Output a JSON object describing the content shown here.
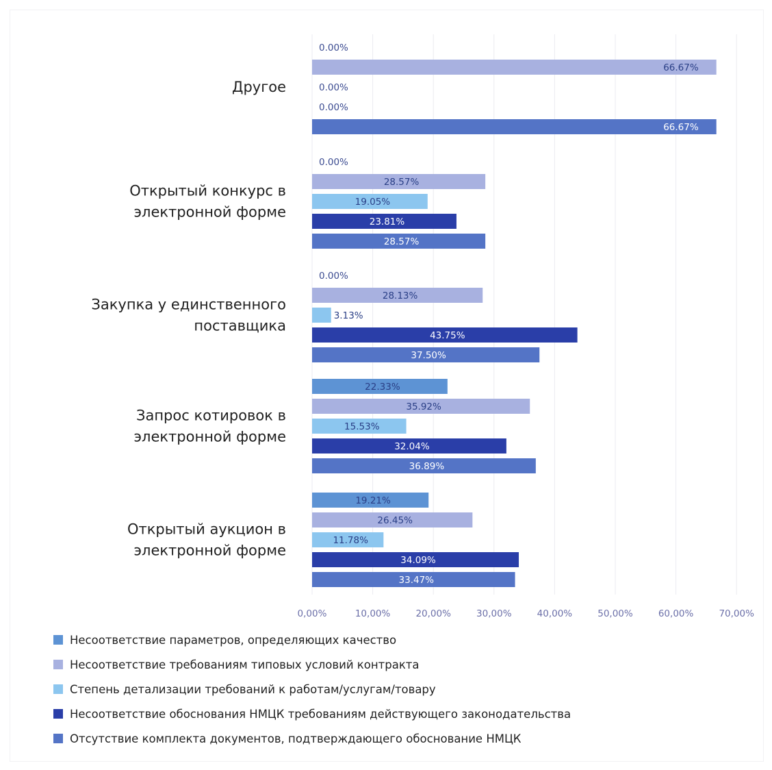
{
  "chart_data": {
    "type": "bar",
    "orientation": "horizontal",
    "xlim": [
      0,
      70
    ],
    "x_ticks": [
      "0,00%",
      "10,00%",
      "20,00%",
      "30,00%",
      "40,00%",
      "50,00%",
      "60,00%",
      "70,00%"
    ],
    "grid": "vertical",
    "legend_position": "bottom",
    "categories": [
      {
        "label": [
          "Другое"
        ],
        "values": [
          0.0,
          66.67,
          0.0,
          0.0,
          66.67
        ],
        "labels": [
          "0.00%",
          "66.67%",
          "0.00%",
          "0.00%",
          "66.67%"
        ]
      },
      {
        "label": [
          "Открытый конкурс в",
          "электронной форме"
        ],
        "values": [
          0.0,
          28.57,
          19.05,
          23.81,
          28.57
        ],
        "labels": [
          "0.00%",
          "28.57%",
          "19.05%",
          "23.81%",
          "28.57%"
        ]
      },
      {
        "label": [
          "Закупка у единственного",
          "поставщика"
        ],
        "values": [
          0.0,
          28.13,
          3.13,
          43.75,
          37.5
        ],
        "labels": [
          "0.00%",
          "28.13%",
          "3.13%",
          "43.75%",
          "37.50%"
        ]
      },
      {
        "label": [
          "Запрос котировок в",
          "электронной форме"
        ],
        "values": [
          22.33,
          35.92,
          15.53,
          32.04,
          36.89
        ],
        "labels": [
          "22.33%",
          "35.92%",
          "15.53%",
          "32.04%",
          "36.89%"
        ]
      },
      {
        "label": [
          "Открытый аукцион в",
          "электронной форме"
        ],
        "values": [
          19.21,
          26.45,
          11.78,
          34.09,
          33.47
        ],
        "labels": [
          "19.21%",
          "26.45%",
          "11.78%",
          "34.09%",
          "33.47%"
        ]
      }
    ],
    "series": [
      {
        "name": "Несоответствие параметров, определяющих качество",
        "color": "#5d93d4",
        "label_color": "#2a3f86"
      },
      {
        "name": "Несоответствие требованиям типовых условий контракта",
        "color": "#a8b1e0",
        "label_color": "#2a3f86"
      },
      {
        "name": "Степень детализации требований к работам/услугам/товару",
        "color": "#8cc6ef",
        "label_color": "#2a3f86"
      },
      {
        "name": "Несоответствие обоснования НМЦК требованиям действующего законодательства",
        "color": "#2a3ea8",
        "label_color": "#ffffff"
      },
      {
        "name": "Отсутствие комплекта документов, подтверждающего обоснование НМЦК",
        "color": "#5474c6",
        "label_color": "#ffffff"
      }
    ]
  }
}
